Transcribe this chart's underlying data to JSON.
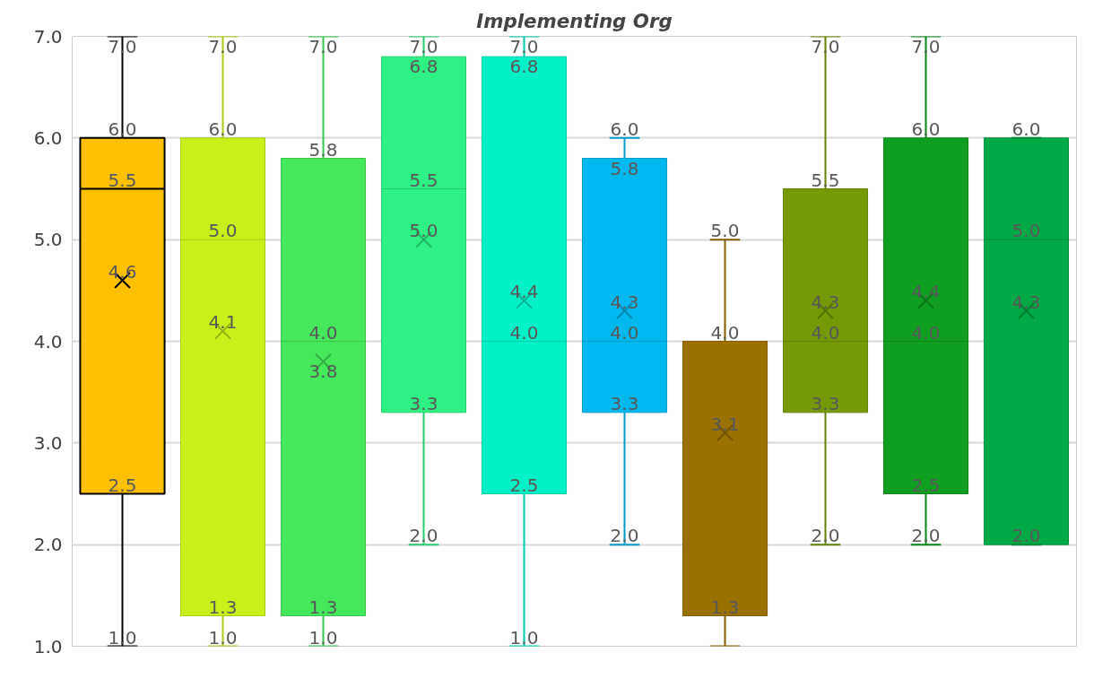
{
  "chart_data": {
    "type": "box",
    "title": "Implementing Org",
    "categories": [
      null,
      null,
      null,
      null,
      null,
      null,
      null,
      null,
      null,
      null
    ],
    "colors": [
      "#ffc000",
      "#c8f01a",
      "#45e85a",
      "#2ef083",
      "#00f0c8",
      "#00b8f0",
      "#9a7000",
      "#759a05",
      "#0f9e1f",
      "#00a846"
    ],
    "boxes": [
      {
        "low": 1.0,
        "q1": 2.5,
        "median": 5.5,
        "q3": 6.0,
        "high": 7.0,
        "mean": 4.6
      },
      {
        "low": 1.0,
        "q1": 1.3,
        "median": 5.0,
        "q3": 6.0,
        "high": 7.0,
        "mean": 4.1
      },
      {
        "low": 1.0,
        "q1": 1.3,
        "median": 4.0,
        "q3": 5.8,
        "high": 7.0,
        "mean": 3.8
      },
      {
        "low": 2.0,
        "q1": 3.3,
        "median": 5.5,
        "q3": 6.8,
        "high": 7.0,
        "mean": 5.0
      },
      {
        "low": 1.0,
        "q1": 2.5,
        "median": 4.0,
        "q3": 6.8,
        "high": 7.0,
        "mean": 4.4
      },
      {
        "low": 2.0,
        "q1": 3.3,
        "median": 4.0,
        "q3": 5.8,
        "high": 6.0,
        "mean": 4.3
      },
      {
        "low": 1.0,
        "q1": 1.3,
        "median": 4.0,
        "q3": 4.0,
        "high": 5.0,
        "mean": 3.1
      },
      {
        "low": 2.0,
        "q1": 3.3,
        "median": 4.0,
        "q3": 5.5,
        "high": 7.0,
        "mean": 4.3
      },
      {
        "low": 2.0,
        "q1": 2.5,
        "median": 4.0,
        "q3": 6.0,
        "high": 7.0,
        "mean": 4.4
      },
      {
        "low": 2.0,
        "q1": 2.0,
        "median": 5.0,
        "q3": 6.0,
        "high": 6.0,
        "mean": 4.3
      }
    ],
    "ylim": [
      1.0,
      7.0
    ],
    "yticks": [
      {
        "value": 1,
        "label": "1.0"
      },
      {
        "value": 2,
        "label": "2.0"
      },
      {
        "value": 3,
        "label": "3.0"
      },
      {
        "value": 4,
        "label": "4.0"
      },
      {
        "value": 5,
        "label": "5.0"
      },
      {
        "value": 6,
        "label": "6.0"
      },
      {
        "value": 7,
        "label": "7.0"
      }
    ],
    "value_labels": [
      {
        "low": "1.0",
        "q1": "2.5",
        "median": "5.5",
        "q3": "6.0",
        "high": "7.0",
        "mean": "4.6"
      },
      {
        "low": "1.0",
        "q1": "1.3",
        "median": "5.0",
        "q3": "6.0",
        "high": "7.0",
        "mean": "4.1"
      },
      {
        "low": "1.0",
        "q1": "1.3",
        "median": "4.0",
        "q3": "5.8",
        "high": "7.0",
        "mean": "3.8"
      },
      {
        "low": "2.0",
        "q1": "3.3",
        "median": "5.5",
        "q3": "6.8",
        "high": "7.0",
        "mean": "5.0"
      },
      {
        "low": "1.0",
        "q1": "2.5",
        "median": "4.0",
        "q3": "6.8",
        "high": "7.0",
        "mean": "4.4"
      },
      {
        "low": "2.0",
        "q1": "3.3",
        "median": "4.0",
        "q3": "5.8",
        "high": "6.0",
        "mean": "4.3"
      },
      {
        "q1": "1.3",
        "q3": "4.0",
        "high": "5.0",
        "mean": "3.1"
      },
      {
        "low": "2.0",
        "q1": "3.3",
        "median": "4.0",
        "q3": "5.5",
        "high": "7.0",
        "mean": "4.3"
      },
      {
        "low": "2.0",
        "q1": "2.5",
        "median": "4.0",
        "q3": "6.0",
        "high": "7.0",
        "mean": "4.4"
      },
      {
        "q1": "2.0",
        "median": "5.0",
        "q3": "6.0",
        "mean": "4.3"
      }
    ],
    "grid": "y",
    "marker": "cross"
  }
}
